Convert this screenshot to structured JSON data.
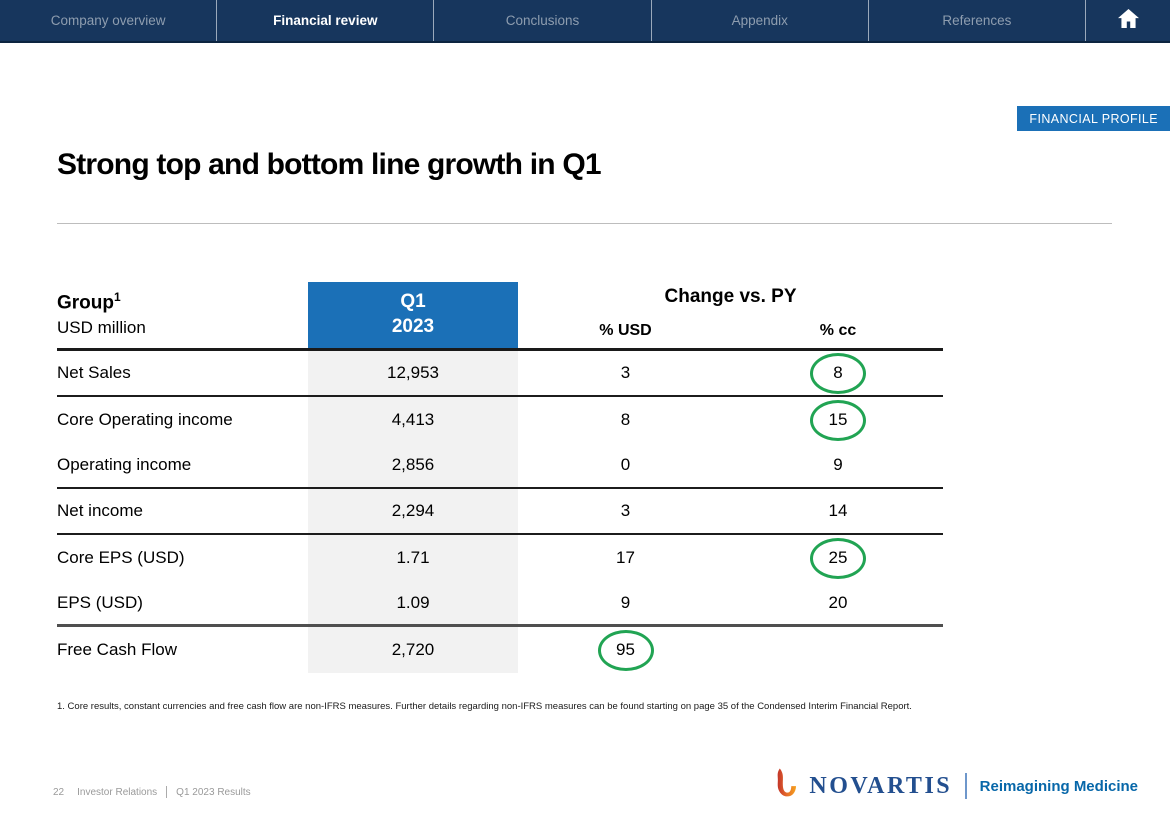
{
  "nav": {
    "tabs": [
      {
        "label": "Company overview",
        "active": false
      },
      {
        "label": "Financial review",
        "active": true
      },
      {
        "label": "Conclusions",
        "active": false
      },
      {
        "label": "Appendix",
        "active": false
      },
      {
        "label": "References",
        "active": false
      }
    ]
  },
  "badge": {
    "label": "FINANCIAL PROFILE"
  },
  "title": "Strong top and bottom line growth in Q1",
  "table": {
    "group_label": "Group",
    "group_superscript": "1",
    "unit_label": "USD million",
    "period_header": {
      "line1": "Q1",
      "line2": "2023"
    },
    "change_header": "Change vs. PY",
    "columns": {
      "usd": "% USD",
      "cc": "% cc"
    },
    "rows": [
      {
        "label": "Net Sales",
        "q1_2023": "12,953",
        "pct_usd": "3",
        "pct_cc": "8",
        "usd_circled": false,
        "cc_circled": true,
        "divider_below": "thin"
      },
      {
        "label": "Core Operating income",
        "q1_2023": "4,413",
        "pct_usd": "8",
        "pct_cc": "15",
        "usd_circled": false,
        "cc_circled": true,
        "divider_below": "none"
      },
      {
        "label": "Operating income",
        "q1_2023": "2,856",
        "pct_usd": "0",
        "pct_cc": "9",
        "usd_circled": false,
        "cc_circled": false,
        "divider_below": "thin"
      },
      {
        "label": "Net income",
        "q1_2023": "2,294",
        "pct_usd": "3",
        "pct_cc": "14",
        "usd_circled": false,
        "cc_circled": false,
        "divider_below": "thin"
      },
      {
        "label": "Core EPS (USD)",
        "q1_2023": "1.71",
        "pct_usd": "17",
        "pct_cc": "25",
        "usd_circled": false,
        "cc_circled": true,
        "divider_below": "none"
      },
      {
        "label": "EPS (USD)",
        "q1_2023": "1.09",
        "pct_usd": "9",
        "pct_cc": "20",
        "usd_circled": false,
        "cc_circled": false,
        "divider_below": "thick"
      },
      {
        "label": "Free Cash Flow",
        "q1_2023": "2,720",
        "pct_usd": "95",
        "pct_cc": "",
        "usd_circled": true,
        "cc_circled": false,
        "divider_below": "none"
      }
    ]
  },
  "footnote": "1. Core results, constant currencies and free cash flow are non-IFRS measures. Further details regarding non-IFRS measures can be found starting on page 35 of the Condensed Interim Financial Report.",
  "footer": {
    "page_number": "22",
    "section": "Investor Relations",
    "deck": "Q1 2023 Results",
    "brand": "NOVARTIS",
    "tagline": "Reimagining Medicine"
  },
  "colors": {
    "nav_navy": "#17365D",
    "accent_blue": "#1B70B7",
    "highlight_green": "#21A453",
    "brand_blue": "#234F8F",
    "tagline_blue": "#0767A9",
    "row_shade": "#F2F2F2"
  }
}
